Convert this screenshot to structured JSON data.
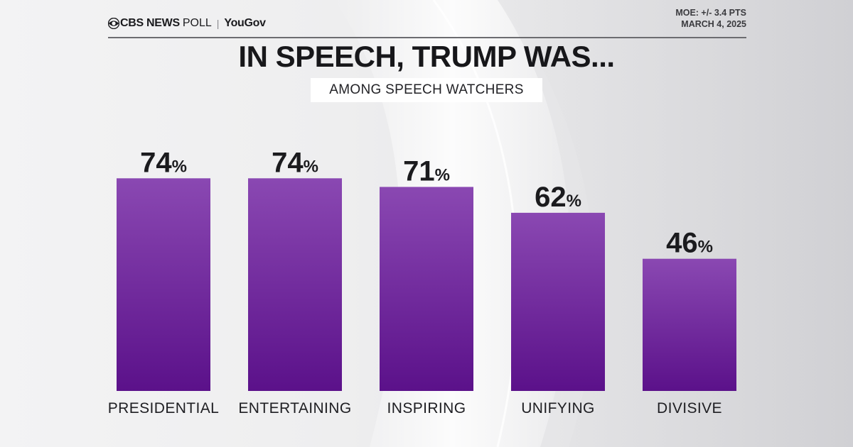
{
  "header": {
    "brand_cbs": "CBS NEWS",
    "brand_poll": "POLL",
    "brand_sep": "|",
    "brand_partner": "YouGov",
    "moe": "MOE: +/- 3.4 PTS",
    "date": "MARCH 4, 2025"
  },
  "colors": {
    "bar_top": "#8a48b2",
    "bar_bottom": "#5b118a",
    "text": "#1b1b1e"
  },
  "chart_data": {
    "type": "bar",
    "title": "IN SPEECH, TRUMP WAS...",
    "subtitle": "AMONG SPEECH WATCHERS",
    "categories": [
      "PRESIDENTIAL",
      "ENTERTAINING",
      "INSPIRING",
      "UNIFYING",
      "DIVISIVE"
    ],
    "values": [
      74,
      74,
      71,
      62,
      46
    ],
    "value_suffix": "%",
    "ylim": [
      0,
      100
    ],
    "grid": false,
    "legend": "none"
  }
}
